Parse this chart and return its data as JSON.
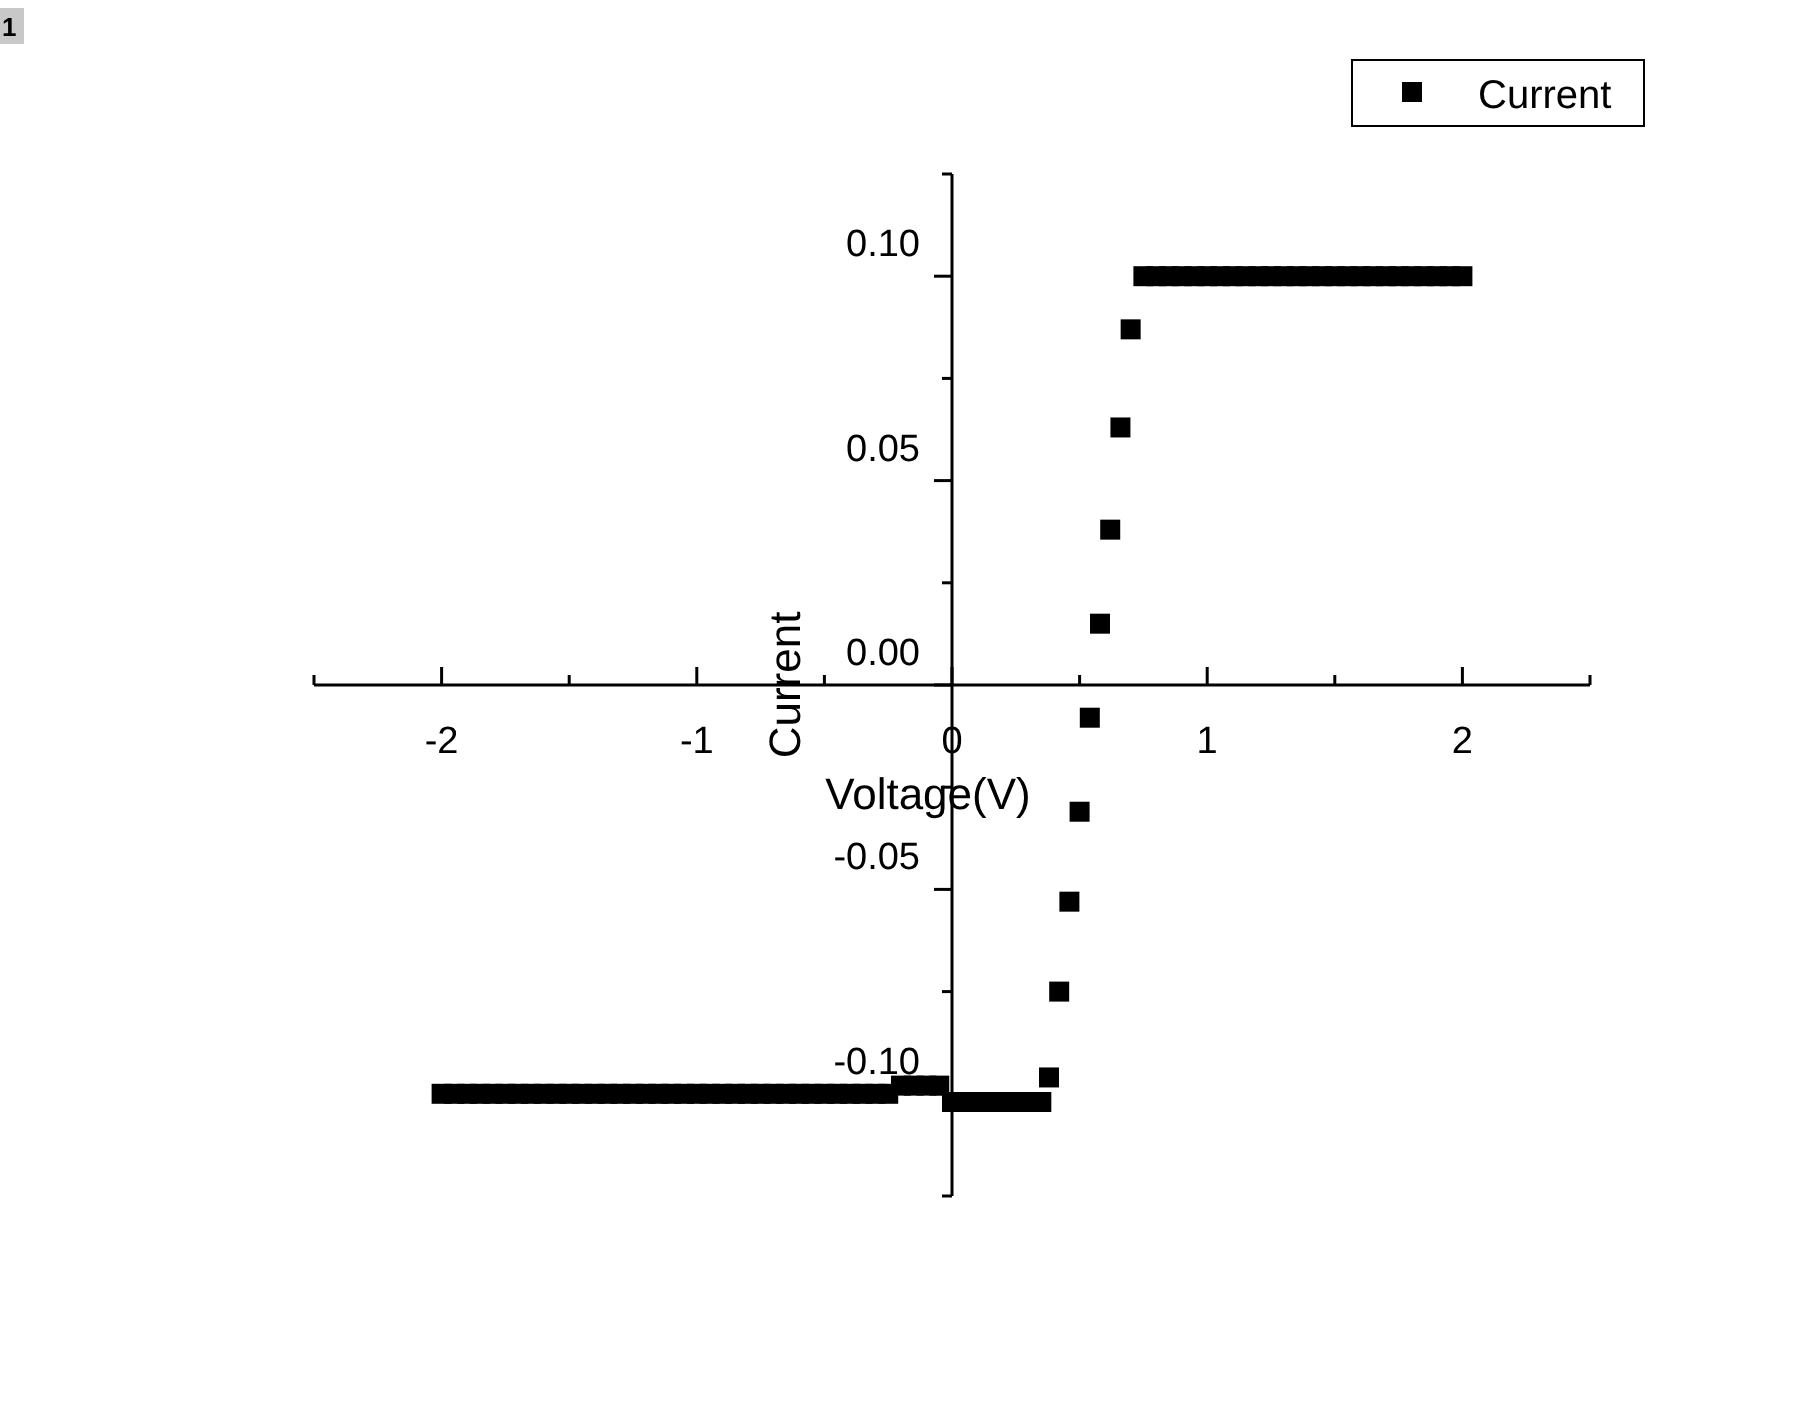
{
  "chart_data": {
    "type": "scatter",
    "xlabel": "Voltage(V)",
    "ylabel": "Current",
    "annotations": [
      "1"
    ],
    "legend": "top right",
    "marker": "square",
    "xlim": [
      -2.5,
      2.5
    ],
    "ylim": [
      -0.125,
      0.125
    ],
    "xticks": [
      {
        "value": -2.5,
        "label": null
      },
      -2,
      {
        "value": -1.5,
        "label": null
      },
      -1,
      {
        "value": -0.5,
        "label": null
      },
      0,
      {
        "value": 0.5,
        "label": null
      },
      1,
      {
        "value": 1.5,
        "label": null
      },
      2,
      {
        "value": 2.5,
        "label": null
      }
    ],
    "yticks": [
      {
        "value": -0.125,
        "label": null
      },
      {
        "value": -0.1,
        "label": "-0.10"
      },
      {
        "value": -0.075,
        "label": null
      },
      {
        "value": -0.05,
        "label": "-0.05"
      },
      {
        "value": -0.025,
        "label": null
      },
      {
        "value": 0,
        "label": "0.00"
      },
      {
        "value": 0.025,
        "label": null
      },
      {
        "value": 0.05,
        "label": "0.05"
      },
      {
        "value": 0.075,
        "label": null
      },
      {
        "value": 0.1,
        "label": "0.10"
      },
      {
        "value": 0.125,
        "label": null
      }
    ],
    "x": [
      -2,
      -1.95,
      -1.9,
      -1.85,
      -1.8,
      -1.75,
      -1.7,
      -1.65,
      -1.6,
      -1.55,
      -1.5,
      -1.45,
      -1.4,
      -1.35,
      -1.3,
      -1.25,
      -1.2,
      -1.15,
      -1.1,
      -1.05,
      -1,
      -0.95,
      -0.9,
      -0.85,
      -0.8,
      -0.75,
      -0.7,
      -0.65,
      -0.6,
      -0.55,
      -0.5,
      -0.45,
      -0.4,
      -0.35,
      -0.3,
      -0.25,
      -0.2,
      -0.15,
      -0.1,
      -0.05,
      0,
      0.05,
      0.1,
      0.15,
      0.2,
      0.25,
      0.3,
      0.35,
      0.38,
      0.42,
      0.46,
      0.5,
      0.54,
      0.58,
      0.62,
      0.66,
      0.7,
      0.75,
      0.8,
      0.85,
      0.9,
      0.95,
      1,
      1.05,
      1.1,
      1.15,
      1.2,
      1.25,
      1.3,
      1.35,
      1.4,
      1.45,
      1.5,
      1.55,
      1.6,
      1.65,
      1.7,
      1.75,
      1.8,
      1.85,
      1.9,
      1.95,
      2
    ],
    "series": [
      {
        "name": "Current",
        "color": "#000000",
        "values": [
          -0.1,
          -0.1,
          -0.1,
          -0.1,
          -0.1,
          -0.1,
          -0.1,
          -0.1,
          -0.1,
          -0.1,
          -0.1,
          -0.1,
          -0.1,
          -0.1,
          -0.1,
          -0.1,
          -0.1,
          -0.1,
          -0.1,
          -0.1,
          -0.1,
          -0.1,
          -0.1,
          -0.1,
          -0.1,
          -0.1,
          -0.1,
          -0.1,
          -0.1,
          -0.1,
          -0.1,
          -0.1,
          -0.1,
          -0.1,
          -0.1,
          -0.1,
          -0.098,
          -0.098,
          -0.098,
          -0.098,
          -0.102,
          -0.102,
          -0.102,
          -0.102,
          -0.102,
          -0.102,
          -0.102,
          -0.102,
          -0.096,
          -0.075,
          -0.053,
          -0.031,
          -0.008,
          0.015,
          0.038,
          0.063,
          0.087,
          0.1,
          0.1,
          0.1,
          0.1,
          0.1,
          0.1,
          0.1,
          0.1,
          0.1,
          0.1,
          0.1,
          0.1,
          0.1,
          0.1,
          0.1,
          0.1,
          0.1,
          0.1,
          0.1,
          0.1,
          0.1,
          0.1,
          0.1,
          0.1,
          0.1,
          0.1
        ]
      }
    ]
  }
}
